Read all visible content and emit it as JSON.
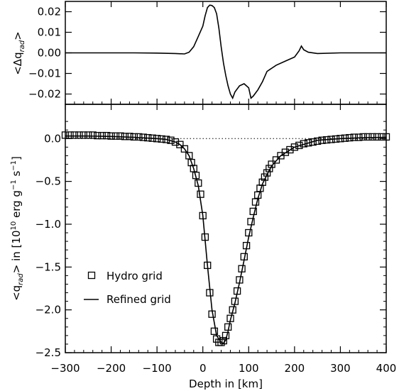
{
  "chart_data": [
    {
      "type": "line",
      "panel": "top",
      "ylabel_parts": {
        "open": "<Δq",
        "sub": "rad",
        "close": ">"
      },
      "xlim": [
        -300,
        400
      ],
      "ylim": [
        -0.025,
        0.025
      ],
      "yticks": [
        0.02,
        0.01,
        0.0,
        -0.01,
        -0.02
      ],
      "ytick_labels": [
        "0.02",
        "0.01",
        "0.00",
        "−0.01",
        "−0.02"
      ],
      "series": [
        {
          "x": [
            -300,
            -250,
            -200,
            -150,
            -100,
            -60,
            -40,
            -30,
            -20,
            -10,
            0,
            5,
            10,
            15,
            20,
            25,
            30,
            35,
            40,
            45,
            50,
            55,
            60,
            65,
            70,
            80,
            90,
            100,
            105,
            110,
            120,
            130,
            140,
            160,
            180,
            200,
            210,
            215,
            220,
            230,
            250,
            300,
            350,
            400
          ],
          "y": [
            0.0,
            0.0,
            0.0,
            0.0,
            -0.0001,
            -0.0003,
            -0.0005,
            0.0003,
            0.003,
            0.008,
            0.013,
            0.018,
            0.022,
            0.0232,
            0.023,
            0.022,
            0.019,
            0.012,
            0.003,
            -0.005,
            -0.011,
            -0.016,
            -0.02,
            -0.022,
            -0.019,
            -0.016,
            -0.015,
            -0.017,
            -0.022,
            -0.021,
            -0.018,
            -0.014,
            -0.009,
            -0.006,
            -0.004,
            -0.002,
            0.001,
            0.0033,
            0.0015,
            0.0003,
            -0.0003,
            0.0,
            0.0,
            0.0
          ]
        }
      ]
    },
    {
      "type": "scatter",
      "panel": "bottom",
      "ylabel_parts": {
        "open": "<q",
        "sub": "rad",
        "mid": "> in [10",
        "sup": "10",
        "unit": " erg g",
        "sup2": "−1",
        "unit2": " s",
        "sup3": "−1",
        "close": "]"
      },
      "xlabel": "Depth in [km]",
      "xlim": [
        -300,
        400
      ],
      "ylim": [
        -2.5,
        0.4
      ],
      "xticks": [
        -300,
        -200,
        -100,
        0,
        100,
        200,
        300,
        400
      ],
      "xtick_labels": [
        "−300",
        "−200",
        "−100",
        "0",
        "100",
        "200",
        "300",
        "400"
      ],
      "yticks": [
        0.0,
        -0.5,
        -1.0,
        -1.5,
        -2.0,
        -2.5
      ],
      "ytick_labels": [
        "0.0",
        "−0.5",
        "−1.0",
        "−1.5",
        "−2.0",
        "−2.5"
      ],
      "zero_line": "dotted",
      "legend_placement": "lower-left",
      "series": [
        {
          "name": "Hydro grid",
          "style": "open-square",
          "x": [
            -300,
            -290,
            -280,
            -270,
            -260,
            -250,
            -240,
            -230,
            -220,
            -210,
            -200,
            -190,
            -180,
            -170,
            -160,
            -150,
            -140,
            -130,
            -120,
            -110,
            -100,
            -90,
            -80,
            -70,
            -60,
            -50,
            -40,
            -30,
            -25,
            -20,
            -15,
            -10,
            -5,
            0,
            5,
            10,
            15,
            20,
            25,
            30,
            35,
            40,
            45,
            50,
            55,
            60,
            65,
            70,
            75,
            80,
            85,
            90,
            95,
            100,
            105,
            110,
            115,
            120,
            125,
            130,
            135,
            140,
            145,
            150,
            160,
            170,
            180,
            190,
            200,
            210,
            220,
            230,
            240,
            250,
            260,
            270,
            280,
            290,
            300,
            310,
            320,
            330,
            340,
            350,
            360,
            370,
            380,
            390,
            400
          ],
          "y": [
            0.04,
            0.04,
            0.04,
            0.04,
            0.04,
            0.04,
            0.04,
            0.035,
            0.035,
            0.035,
            0.03,
            0.03,
            0.03,
            0.025,
            0.025,
            0.02,
            0.02,
            0.015,
            0.01,
            0.005,
            0.0,
            -0.005,
            -0.01,
            -0.02,
            -0.04,
            -0.07,
            -0.12,
            -0.2,
            -0.28,
            -0.35,
            -0.43,
            -0.52,
            -0.65,
            -0.9,
            -1.15,
            -1.48,
            -1.8,
            -2.05,
            -2.25,
            -2.34,
            -2.38,
            -2.38,
            -2.36,
            -2.3,
            -2.2,
            -2.1,
            -2.0,
            -1.9,
            -1.78,
            -1.65,
            -1.52,
            -1.38,
            -1.25,
            -1.1,
            -0.97,
            -0.85,
            -0.74,
            -0.66,
            -0.58,
            -0.51,
            -0.45,
            -0.4,
            -0.35,
            -0.3,
            -0.25,
            -0.2,
            -0.16,
            -0.13,
            -0.1,
            -0.08,
            -0.06,
            -0.05,
            -0.04,
            -0.03,
            -0.02,
            -0.015,
            -0.01,
            -0.005,
            0.0,
            0.005,
            0.01,
            0.015,
            0.015,
            0.02,
            0.02,
            0.02,
            0.02,
            0.02,
            0.02
          ]
        },
        {
          "name": "Refined grid",
          "style": "solid-line",
          "x": [
            -300,
            -250,
            -200,
            -150,
            -100,
            -80,
            -60,
            -50,
            -40,
            -30,
            -20,
            -10,
            0,
            10,
            20,
            30,
            40,
            45,
            50,
            55,
            60,
            70,
            80,
            90,
            100,
            110,
            120,
            130,
            140,
            150,
            170,
            200,
            250,
            300,
            350,
            400
          ],
          "y": [
            0.03,
            0.03,
            0.025,
            0.015,
            0.0,
            -0.01,
            -0.04,
            -0.07,
            -0.12,
            -0.2,
            -0.35,
            -0.55,
            -0.9,
            -1.48,
            -2.0,
            -2.3,
            -2.38,
            -2.39,
            -2.35,
            -2.25,
            -2.12,
            -1.92,
            -1.68,
            -1.42,
            -1.15,
            -0.92,
            -0.7,
            -0.53,
            -0.42,
            -0.32,
            -0.2,
            -0.1,
            -0.02,
            0.0,
            0.01,
            0.015
          ]
        }
      ]
    }
  ]
}
